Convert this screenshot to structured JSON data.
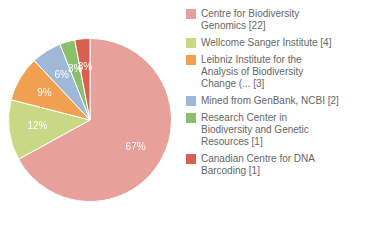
{
  "chart_data": {
    "type": "pie",
    "categories": [
      "Centre for Biodiversity\nGenomics [22]",
      "Wellcome Sanger Institute [4]",
      "Leibniz Institute for the\nAnalysis of Biodiversity\nChange (... [3]",
      "Mined from GenBank, NCBI [2]",
      "Research Center in\nBiodiversity and Genetic\nResources [1]",
      "Canadian Centre for DNA\nBarcoding [1]"
    ],
    "values": [
      67,
      12,
      9,
      6,
      3,
      3
    ],
    "value_labels": [
      "67%",
      "12%",
      "9%",
      "6%",
      "3%",
      "3%"
    ],
    "data_labels": true,
    "colors": [
      "#e8a09a",
      "#c8d885",
      "#f0a050",
      "#a0b8d8",
      "#8cbf6a",
      "#d96050"
    ],
    "legend": "right"
  }
}
